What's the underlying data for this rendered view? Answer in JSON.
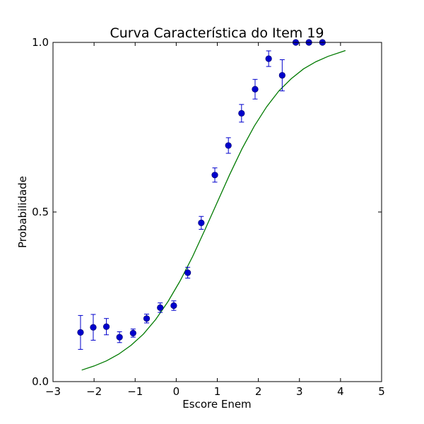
{
  "chart_data": {
    "type": "scatter",
    "title": "Curva Característica do Item 19",
    "xlabel": "Escore Enem",
    "ylabel": "Probabilidade",
    "xlim": [
      -3,
      5
    ],
    "ylim": [
      0.0,
      1.0
    ],
    "xticks": [
      -3,
      -2,
      -1,
      0,
      1,
      2,
      3,
      4,
      5
    ],
    "xtick_labels": [
      "−3",
      "−2",
      "−1",
      "0",
      "1",
      "2",
      "3",
      "4",
      "5"
    ],
    "yticks": [
      0.0,
      0.5,
      1.0
    ],
    "ytick_labels": [
      "0.0",
      "0.5",
      "1.0"
    ],
    "grid": false,
    "series": [
      {
        "type": "scatter",
        "marker": "circle",
        "color": "#0000cc",
        "errorbar_color": "#0000cc",
        "points": [
          {
            "x": -2.33,
            "y": 0.145,
            "err": 0.05
          },
          {
            "x": -2.02,
            "y": 0.16,
            "err": 0.038
          },
          {
            "x": -1.7,
            "y": 0.162,
            "err": 0.024
          },
          {
            "x": -1.38,
            "y": 0.131,
            "err": 0.016
          },
          {
            "x": -1.05,
            "y": 0.143,
            "err": 0.012
          },
          {
            "x": -0.72,
            "y": 0.186,
            "err": 0.013
          },
          {
            "x": -0.39,
            "y": 0.218,
            "err": 0.014
          },
          {
            "x": -0.06,
            "y": 0.224,
            "err": 0.014
          },
          {
            "x": 0.28,
            "y": 0.321,
            "err": 0.016
          },
          {
            "x": 0.61,
            "y": 0.468,
            "err": 0.019
          },
          {
            "x": 0.94,
            "y": 0.609,
            "err": 0.021
          },
          {
            "x": 1.27,
            "y": 0.696,
            "err": 0.023
          },
          {
            "x": 1.59,
            "y": 0.791,
            "err": 0.026
          },
          {
            "x": 1.92,
            "y": 0.862,
            "err": 0.029
          },
          {
            "x": 2.25,
            "y": 0.952,
            "err": 0.023
          },
          {
            "x": 2.58,
            "y": 0.903,
            "err": 0.046
          },
          {
            "x": 2.91,
            "y": 1.0,
            "err": 0.0
          },
          {
            "x": 3.23,
            "y": 1.0,
            "err": 0.0
          },
          {
            "x": 3.56,
            "y": 1.0,
            "err": 0.0
          }
        ]
      },
      {
        "type": "line",
        "color": "#007a00",
        "x": [
          -2.3,
          -2.0,
          -1.7,
          -1.4,
          -1.1,
          -0.8,
          -0.5,
          -0.2,
          0.1,
          0.4,
          0.7,
          1.0,
          1.3,
          1.6,
          1.9,
          2.2,
          2.5,
          2.8,
          3.1,
          3.4,
          3.7,
          4.0,
          4.12
        ],
        "y": [
          0.034,
          0.046,
          0.061,
          0.081,
          0.107,
          0.14,
          0.183,
          0.236,
          0.298,
          0.369,
          0.448,
          0.529,
          0.61,
          0.686,
          0.753,
          0.81,
          0.857,
          0.893,
          0.922,
          0.943,
          0.959,
          0.971,
          0.976
        ]
      }
    ]
  }
}
